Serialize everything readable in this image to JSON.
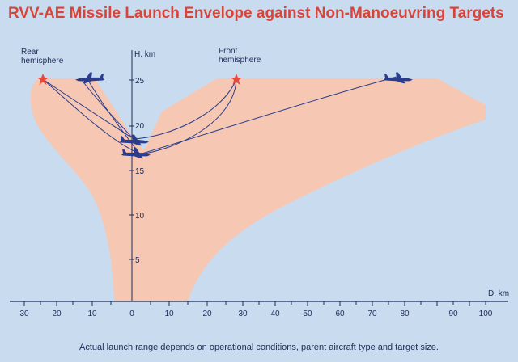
{
  "title": "RVV-AE Missile Launch Envelope against Non-Manoeuvring Targets",
  "footnote": "Actual launch range depends on operational conditions, parent aircraft type and target size.",
  "labels": {
    "rear_hemisphere": [
      "Rear",
      "hemisphere"
    ],
    "front_hemisphere": [
      "Front",
      "hemisphere"
    ],
    "h_axis": "H, km",
    "d_axis": "D, km"
  },
  "h_ticks": [
    "5",
    "10",
    "15",
    "20",
    "25"
  ],
  "d_ticks_rear": [
    "30",
    "20",
    "10",
    "0"
  ],
  "d_ticks_front": [
    "10",
    "20",
    "30",
    "40",
    "50",
    "60",
    "70",
    "80",
    "90",
    "100"
  ],
  "colors": {
    "background": "#c9dbee",
    "envelope_fill": "#f6c8b4",
    "title": "#d9443a",
    "aircraft": "#2a3d8c",
    "launch_star": "#e24a3c"
  },
  "icons": [
    "aircraft-icon",
    "launch-star-icon"
  ]
}
